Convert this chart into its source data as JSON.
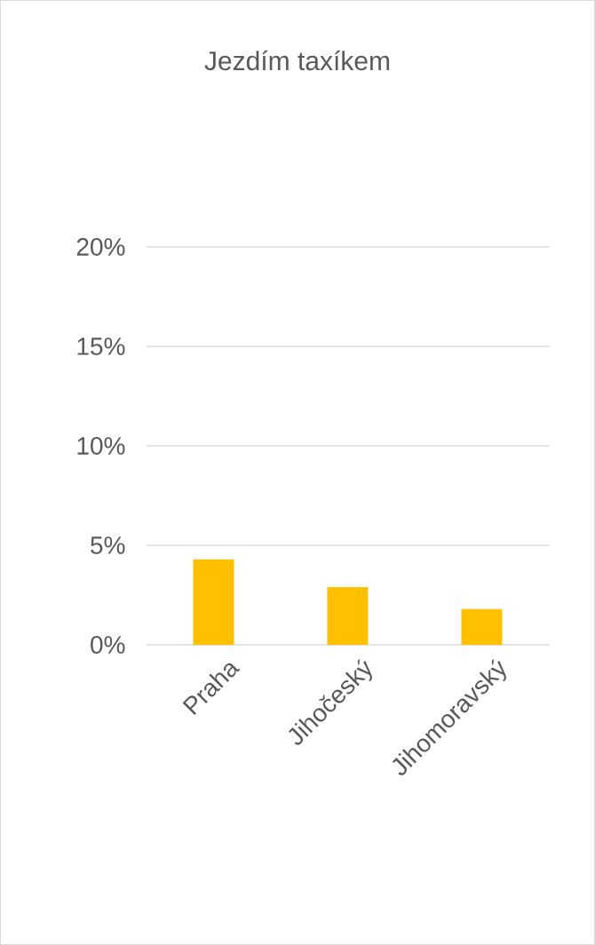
{
  "chart_data": {
    "type": "bar",
    "title": "Jezdím taxíkem",
    "categories": [
      "Praha",
      "Jihočeský",
      "Jihomoravský"
    ],
    "values": [
      4.3,
      2.9,
      1.8
    ],
    "color": "#ffc000",
    "ylim": [
      0,
      20
    ],
    "yticks": [
      {
        "value": 0,
        "label": "0%"
      },
      {
        "value": 5,
        "label": "5%"
      },
      {
        "value": 10,
        "label": "10%"
      },
      {
        "value": 15,
        "label": "15%"
      },
      {
        "value": 20,
        "label": "20%"
      }
    ],
    "grid": "y"
  }
}
